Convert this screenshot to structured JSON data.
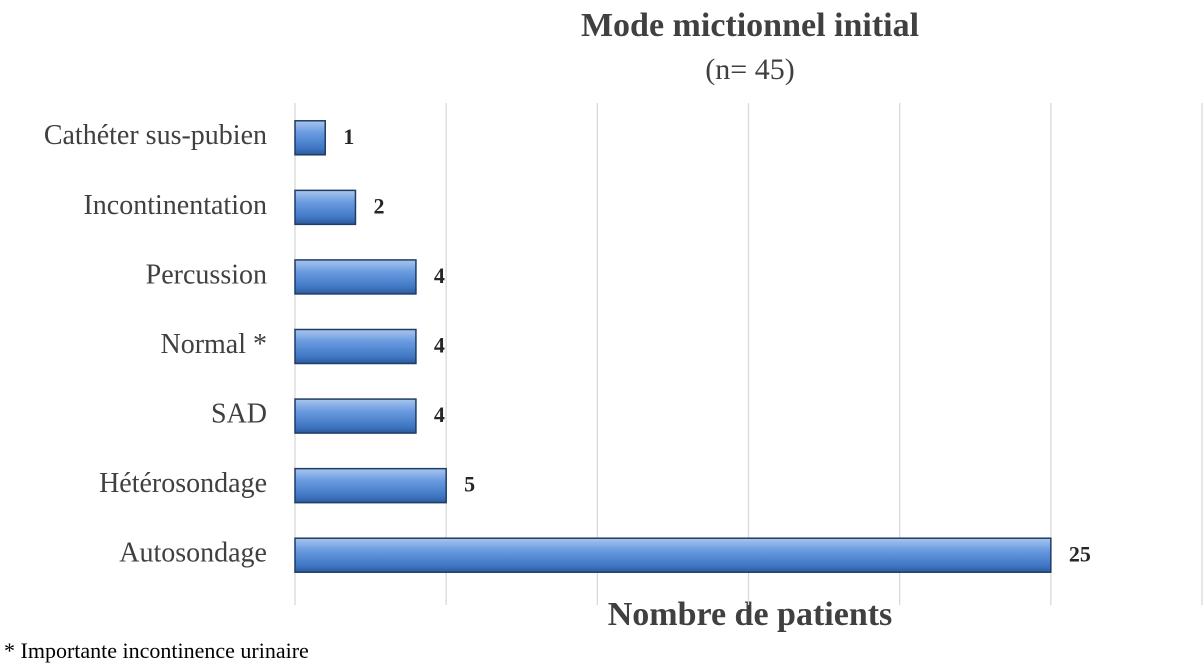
{
  "chart_data": {
    "type": "bar",
    "orientation": "horizontal",
    "title": "Mode mictionnel initial",
    "subtitle": "(n= 45)",
    "x_label": "Nombre de patients",
    "footnote": "* Importante incontinence urinaire",
    "categories": [
      "Cathéter sus-pubien",
      "Incontinentation",
      "Percussion",
      "Normal *",
      "SAD",
      "Hétérosondage",
      "Autosondage"
    ],
    "values": [
      1,
      2,
      4,
      4,
      4,
      5,
      25
    ],
    "color": "#4f81bd",
    "xlim": [
      0,
      30
    ],
    "xticks": [
      0,
      5,
      10,
      15,
      20,
      25,
      30
    ],
    "grid": true
  }
}
